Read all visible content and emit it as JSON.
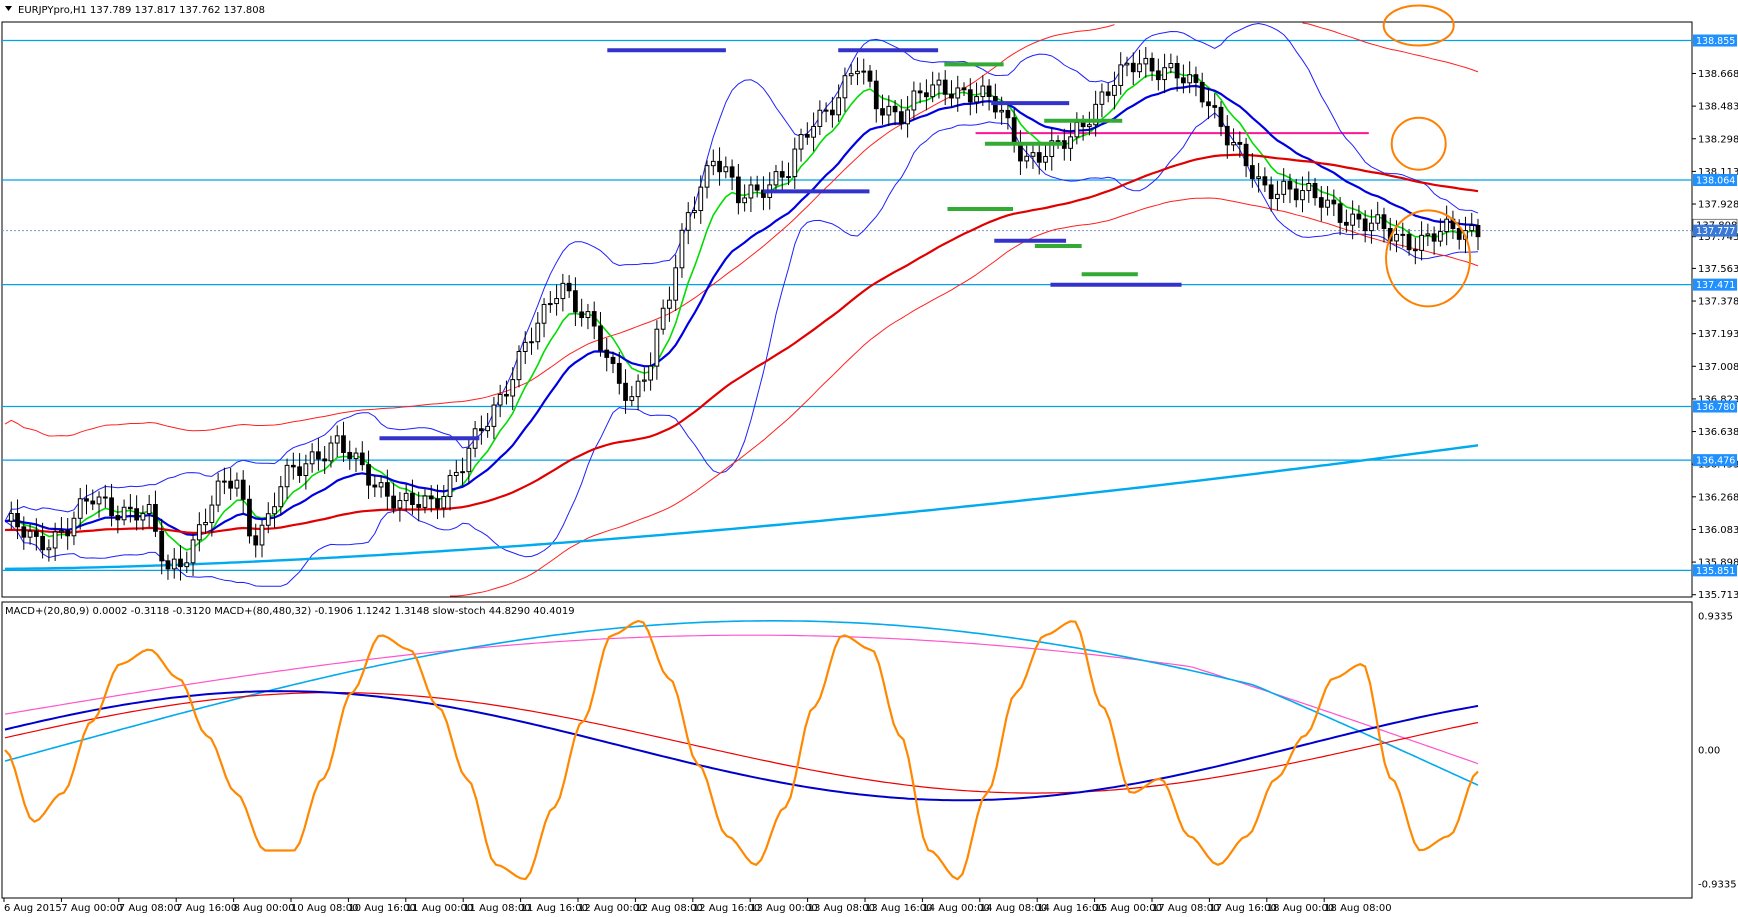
{
  "window": {
    "main_title": "EURJPYpro,H1  137.789 137.817 137.762 137.808",
    "sub_title": "MACD+(20,80,9) 0.0002 -0.3118 -0.3120  MACD+(80,480,32) -0.1906 1.1242 1.3148  slow-stoch 44.8290 40.4019"
  },
  "colors": {
    "hline": "#00a2e8",
    "tag_bg": "#1e90ff",
    "current_tag_bg": "#3a78d8",
    "green_ma": "#00dd00",
    "blue_ma": "#0000e0",
    "red_ma": "#e00000",
    "bb_blue": "#2020ff",
    "bb_red": "#ff2020",
    "light_blue_ma": "#00aaee",
    "magenta_line": "#ff1493",
    "stoch": "#ff8800",
    "stoch_signal": "#ee2200",
    "macd_fast": "#0000cc",
    "macd_fast_signal": "#ee0000",
    "macd_slow": "#00aaee",
    "macd_slow_signal": "#ff55cc",
    "circle": "#ff7f00",
    "support_bar": "#3333cc",
    "resistance_bar": "#33aa33"
  },
  "chart_data": [
    {
      "type": "line",
      "title": "EURJPYpro,H1",
      "y_axis_ticks": [
        "138.668",
        "138.483",
        "138.298",
        "138.113",
        "137.928",
        "137.743",
        "137.563",
        "137.378",
        "137.193",
        "137.008",
        "136.823",
        "136.638",
        "136.453",
        "136.268",
        "136.083",
        "135.898",
        "135.713"
      ],
      "ylim": [
        135.7,
        138.96
      ],
      "level_tags": [
        {
          "label": "138.855",
          "value": 138.855
        },
        {
          "label": "138.064",
          "value": 138.064
        },
        {
          "label": "137.471",
          "value": 137.471
        },
        {
          "label": "136.780",
          "value": 136.78
        },
        {
          "label": "136.476",
          "value": 136.476
        },
        {
          "label": "135.851",
          "value": 135.851
        }
      ],
      "current_price": {
        "label": "137.777",
        "value": 137.777
      },
      "extra_price_tag": {
        "label": "137.808",
        "value": 137.808
      },
      "magenta_level": 138.33,
      "x_labels": [
        "6 Aug 2015",
        "7 Aug 00:00",
        "7 Aug 08:00",
        "7 Aug 16:00",
        "8 Aug 00:00",
        "10 Aug 08:00",
        "10 Aug 16:00",
        "11 Aug 00:00",
        "11 Aug 08:00",
        "11 Aug 16:00",
        "12 Aug 00:00",
        "12 Aug 08:00",
        "12 Aug 16:00",
        "13 Aug 00:00",
        "13 Aug 08:00",
        "13 Aug 16:00",
        "14 Aug 00:00",
        "14 Aug 08:00",
        "14 Aug 16:00",
        "15 Aug 00:00",
        "17 Aug 08:00",
        "17 Aug 16:00",
        "18 Aug 00:00",
        "18 Aug 08:00"
      ],
      "path_points": [
        [
          0,
          136.13
        ],
        [
          10,
          136.0
        ],
        [
          20,
          136.1
        ],
        [
          28,
          136.25
        ],
        [
          38,
          136.2
        ],
        [
          46,
          136.15
        ],
        [
          52,
          135.85
        ],
        [
          60,
          136.0
        ],
        [
          69,
          136.3
        ],
        [
          74,
          136.4
        ],
        [
          79,
          136.05
        ],
        [
          84,
          136.1
        ],
        [
          89,
          136.35
        ],
        [
          97,
          136.5
        ],
        [
          106,
          136.55
        ],
        [
          117,
          136.4
        ],
        [
          127,
          136.2
        ],
        [
          137,
          136.25
        ],
        [
          147,
          136.45
        ],
        [
          156,
          136.75
        ],
        [
          166,
          137.1
        ],
        [
          172,
          137.25
        ],
        [
          178,
          137.5
        ],
        [
          186,
          137.3
        ],
        [
          195,
          136.95
        ],
        [
          201,
          136.85
        ],
        [
          207,
          137.05
        ],
        [
          213,
          137.4
        ],
        [
          219,
          137.9
        ],
        [
          227,
          138.2
        ],
        [
          235,
          137.95
        ],
        [
          243,
          138.05
        ],
        [
          251,
          138.1
        ],
        [
          259,
          138.4
        ],
        [
          267,
          138.55
        ],
        [
          273,
          138.7
        ],
        [
          279,
          138.5
        ],
        [
          287,
          138.45
        ],
        [
          295,
          138.55
        ],
        [
          303,
          138.6
        ],
        [
          311,
          138.55
        ],
        [
          319,
          138.45
        ],
        [
          327,
          138.2
        ],
        [
          335,
          138.2
        ],
        [
          341,
          138.3
        ],
        [
          347,
          138.45
        ],
        [
          353,
          138.55
        ],
        [
          363,
          138.75
        ],
        [
          371,
          138.7
        ],
        [
          379,
          138.6
        ],
        [
          385,
          138.55
        ],
        [
          391,
          138.35
        ],
        [
          397,
          138.15
        ],
        [
          403,
          138.0
        ],
        [
          409,
          138.05
        ],
        [
          419,
          137.95
        ],
        [
          427,
          137.9
        ],
        [
          437,
          137.8
        ],
        [
          445,
          137.75
        ],
        [
          455,
          137.72
        ],
        [
          465,
          137.78
        ],
        [
          472,
          137.8
        ]
      ],
      "candles_note": "reconstructed approximate hourly candles following path_points",
      "indicators": [
        "Green MA",
        "Blue MA",
        "Red MA",
        "Bollinger bands (blue)",
        "Envelope (red)",
        "Light blue long MA"
      ],
      "support_bars": [
        {
          "x1": 120,
          "x2": 152,
          "price": 136.6
        },
        {
          "x1": 243,
          "x2": 277,
          "price": 138.0
        },
        {
          "x1": 193,
          "x2": 231,
          "price": 138.8
        },
        {
          "x1": 267,
          "x2": 299,
          "price": 138.8
        },
        {
          "x1": 316,
          "x2": 341,
          "price": 138.5
        },
        {
          "x1": 317,
          "x2": 340,
          "price": 137.72
        },
        {
          "x1": 335,
          "x2": 377,
          "price": 137.47
        }
      ],
      "resistance_bars": [
        {
          "x1": 301,
          "x2": 320,
          "price": 138.72
        },
        {
          "x1": 314,
          "x2": 339,
          "price": 138.27
        },
        {
          "x1": 302,
          "x2": 323,
          "price": 137.9
        },
        {
          "x1": 333,
          "x2": 358,
          "price": 138.4
        },
        {
          "x1": 330,
          "x2": 345,
          "price": 137.69
        },
        {
          "x1": 345,
          "x2": 363,
          "price": 137.53
        }
      ]
    },
    {
      "type": "line",
      "title": "MACD+ / slow-stoch",
      "y_axis_ticks": [
        "0.9335",
        "0.00",
        "-0.9335"
      ],
      "ylim": [
        -0.9335,
        0.9335
      ],
      "series": [
        {
          "name": "slow-stoch",
          "values": [
            0.0,
            -0.5,
            -0.3,
            0.2,
            0.6,
            0.7,
            0.5,
            0.1,
            -0.3,
            -0.7,
            -0.7,
            -0.2,
            0.4,
            0.8,
            0.7,
            0.3,
            -0.2,
            -0.8,
            -0.9,
            -0.4,
            0.2,
            0.8,
            0.9,
            0.5,
            -0.1,
            -0.6,
            -0.8,
            -0.4,
            0.3,
            0.8,
            0.7,
            0.1,
            -0.7,
            -0.9,
            -0.3,
            0.4,
            0.8,
            0.9,
            0.3,
            -0.3,
            -0.2,
            -0.6,
            -0.8,
            -0.6,
            -0.2,
            0.1,
            0.5,
            0.6,
            -0.2,
            -0.7,
            -0.6,
            -0.15
          ]
        }
      ]
    }
  ]
}
